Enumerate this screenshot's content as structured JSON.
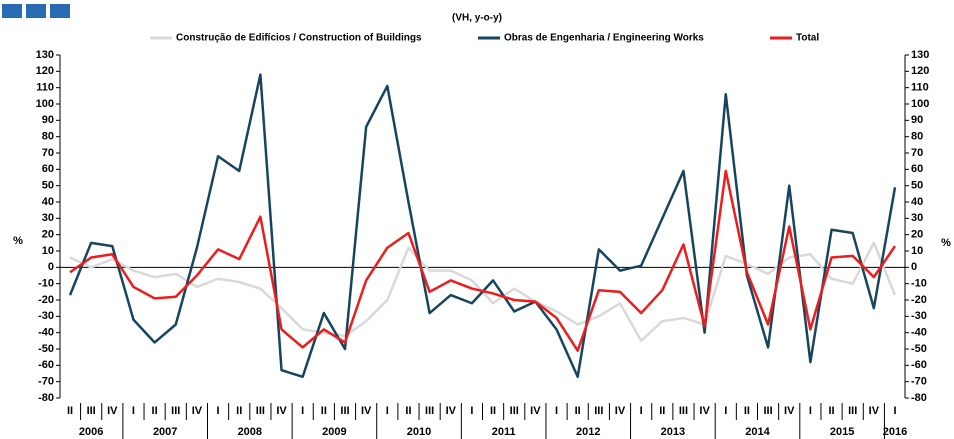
{
  "chart_data": {
    "type": "line",
    "subtitle": "(VH, y-o-y)",
    "ylabel": "%",
    "y2label": "%",
    "categories": [
      "II",
      "III",
      "IV",
      "I",
      "II",
      "III",
      "IV",
      "I",
      "II",
      "III",
      "IV",
      "I",
      "II",
      "III",
      "IV",
      "I",
      "II",
      "III",
      "IV",
      "I",
      "II",
      "III",
      "IV",
      "I",
      "II",
      "III",
      "IV",
      "I",
      "II",
      "III",
      "IV",
      "I",
      "II",
      "III",
      "IV",
      "I",
      "II",
      "III",
      "IV",
      "I"
    ],
    "year_labels": [
      "2006",
      "2007",
      "2008",
      "2009",
      "2010",
      "2011",
      "2012",
      "2013",
      "2014",
      "2015",
      "2016"
    ],
    "series": [
      {
        "name": "Construção de Edifícios / Construction of Buildings",
        "color": "#d9d9d9",
        "values": [
          6,
          0,
          5,
          -2,
          -6,
          -4,
          -12,
          -7,
          -9,
          -13,
          -25,
          -38,
          -40,
          -42,
          -33,
          -20,
          12,
          -2,
          -2,
          -8,
          -22,
          -13,
          -21,
          -27,
          -35,
          -30,
          -22,
          -45,
          -33,
          -31,
          -35,
          7,
          2,
          -4,
          6,
          8,
          -7,
          -10,
          15,
          -17
        ]
      },
      {
        "name": "Obras de Engenharia / Engineering Works",
        "color": "#17455f",
        "values": [
          -17,
          15,
          13,
          -32,
          -46,
          -35,
          12,
          68,
          59,
          118,
          -63,
          -67,
          -28,
          -50,
          86,
          111,
          40,
          -28,
          -17,
          -22,
          -8,
          -27,
          -21,
          -38,
          -67,
          11,
          -2,
          1,
          30,
          59,
          -40,
          106,
          -5,
          -49,
          50,
          -58,
          23,
          21,
          -25,
          49
        ]
      },
      {
        "name": "Total",
        "color": "#ee1c1c",
        "values": [
          -3,
          6,
          8,
          -12,
          -19,
          -18,
          -5,
          11,
          5,
          31,
          -38,
          -49,
          -38,
          -46,
          -8,
          12,
          21,
          -15,
          -8,
          -13,
          -16,
          -20,
          -21,
          -31,
          -51,
          -14,
          -15,
          -28,
          -14,
          14,
          -36,
          59,
          -3,
          -35,
          25,
          -38,
          6,
          7,
          -6,
          13
        ]
      }
    ],
    "ylim": [
      -80,
      130
    ],
    "yticks": [
      -80,
      -70,
      -60,
      -50,
      -40,
      -30,
      -20,
      -10,
      0,
      10,
      20,
      30,
      40,
      50,
      60,
      70,
      80,
      90,
      100,
      110,
      120,
      130
    ]
  }
}
